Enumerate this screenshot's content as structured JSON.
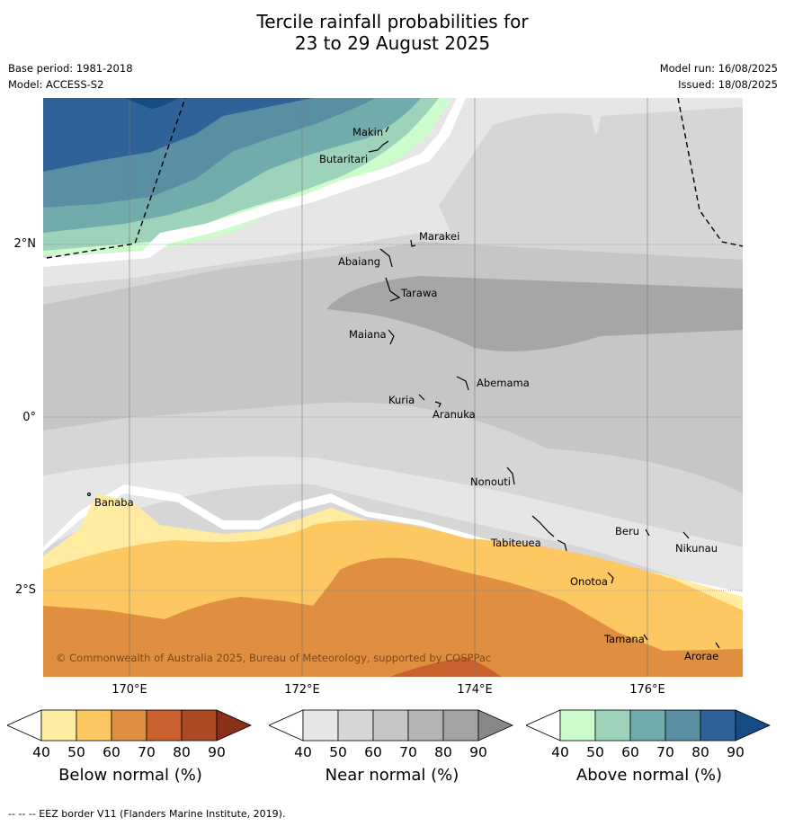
{
  "title": {
    "line1": "Tercile rainfall probabilities for",
    "line2": "23 to 29 August 2025"
  },
  "meta": {
    "base_period": "Base period: 1981-2018",
    "model": "Model: ACCESS-S2",
    "model_run": "Model run: 16/08/2025",
    "issued": "Issued: 18/08/2025"
  },
  "map": {
    "latitude_labels": [
      "2°N",
      "0°",
      "2°S"
    ],
    "longitude_labels": [
      "170°E",
      "172°E",
      "174°E",
      "176°E"
    ],
    "copyright": "© Commonwealth of Australia 2025, Bureau of Meteorology, supported by COSPPac",
    "places": [
      "Makin",
      "Butaritari",
      "Marakei",
      "Abaiang",
      "Tarawa",
      "Maiana",
      "Abemama",
      "Kuria",
      "Aranuka",
      "Nonouti",
      "Banaba",
      "Tabiteuea",
      "Beru",
      "Nikunau",
      "Onotoa",
      "Tamana",
      "Arorae"
    ]
  },
  "colorbars": {
    "ticks": [
      "40",
      "50",
      "60",
      "70",
      "80",
      "90"
    ],
    "below": {
      "label": "Below normal (%)",
      "colors": [
        "#ffffff",
        "#ffeca0",
        "#fdc862",
        "#e08e40",
        "#c9602e",
        "#ad4a23",
        "#8a3019"
      ]
    },
    "near": {
      "label": "Near normal (%)",
      "colors": [
        "#ffffff",
        "#e6e6e6",
        "#d6d6d6",
        "#c6c6c6",
        "#b4b4b4",
        "#a3a3a3",
        "#888888"
      ]
    },
    "above": {
      "label": "Above normal (%)",
      "colors": [
        "#ffffff",
        "#ccfccc",
        "#9dd3ba",
        "#72abab",
        "#5a8fa3",
        "#2f6298",
        "#164c86"
      ]
    }
  },
  "footer": "--  --  -- EEZ border V11 (Flanders Marine Institute, 2019)."
}
